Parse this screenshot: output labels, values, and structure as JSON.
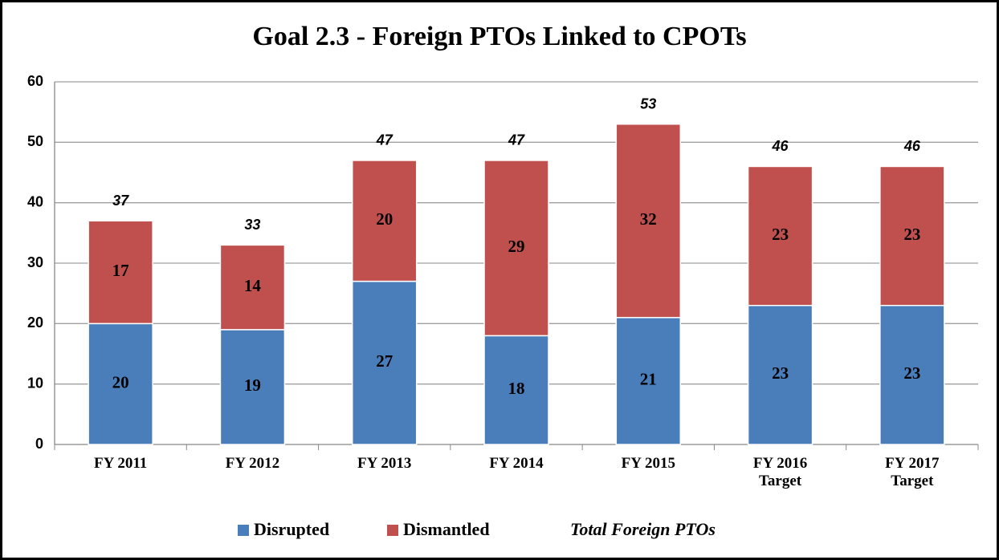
{
  "chart_data": {
    "type": "stacked_bar",
    "title": "Goal 2.3 - Foreign PTOs Linked to CPOTs",
    "categories": [
      "FY 2011",
      "FY 2012",
      "FY 2013",
      "FY 2014",
      "FY 2015",
      "FY 2016\nTarget",
      "FY 2017\nTarget"
    ],
    "series": [
      {
        "name": "Disrupted",
        "color": "#4a7ebb",
        "values": [
          20,
          19,
          27,
          18,
          21,
          23,
          23
        ]
      },
      {
        "name": "Dismantled",
        "color": "#c0504d",
        "values": [
          17,
          14,
          20,
          29,
          32,
          23,
          23
        ]
      }
    ],
    "totals": {
      "name": "Total Foreign PTOs",
      "values": [
        37,
        33,
        47,
        47,
        53,
        46,
        46
      ]
    },
    "ylim": [
      0,
      60
    ],
    "yticks": [
      0,
      10,
      20,
      30,
      40,
      50,
      60
    ],
    "grid": true,
    "legend": "bottom"
  }
}
